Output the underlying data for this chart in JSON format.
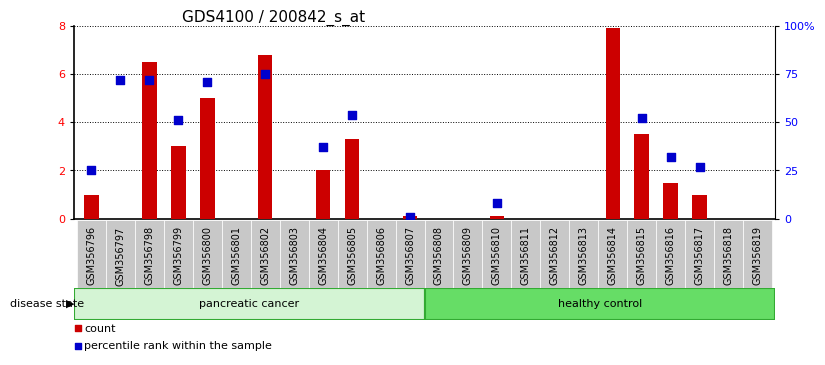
{
  "title": "GDS4100 / 200842_s_at",
  "samples": [
    "GSM356796",
    "GSM356797",
    "GSM356798",
    "GSM356799",
    "GSM356800",
    "GSM356801",
    "GSM356802",
    "GSM356803",
    "GSM356804",
    "GSM356805",
    "GSM356806",
    "GSM356807",
    "GSM356808",
    "GSM356809",
    "GSM356810",
    "GSM356811",
    "GSM356812",
    "GSM356813",
    "GSM356814",
    "GSM356815",
    "GSM356816",
    "GSM356817",
    "GSM356818",
    "GSM356819"
  ],
  "counts": [
    1,
    0,
    6.5,
    3,
    5,
    0,
    6.8,
    0,
    2,
    3.3,
    0,
    0.1,
    0,
    0,
    0.1,
    0,
    0,
    0,
    7.9,
    3.5,
    1.5,
    1,
    0,
    0
  ],
  "percentiles": [
    25,
    72,
    72,
    51,
    71,
    null,
    75,
    null,
    37,
    54,
    null,
    1,
    null,
    null,
    8,
    null,
    null,
    null,
    null,
    52,
    32,
    27,
    null,
    null
  ],
  "bar_color": "#CC0000",
  "dot_color": "#0000CC",
  "ylim_left": [
    0,
    8
  ],
  "ylim_right": [
    0,
    100
  ],
  "yticks_left": [
    0,
    2,
    4,
    6,
    8
  ],
  "ytick_labels_left": [
    "0",
    "2",
    "4",
    "6",
    "8"
  ],
  "yticks_right": [
    0,
    25,
    50,
    75,
    100
  ],
  "ytick_labels_right": [
    "0",
    "25",
    "50",
    "75",
    "100%"
  ],
  "bar_width": 0.5,
  "dot_size": 30,
  "tick_label_fontsize": 7,
  "title_fontsize": 11,
  "legend_fontsize": 8,
  "disease_state_label": "disease state",
  "tick_bg_color": "#c8c8c8",
  "pc_color": "#d4f4d4",
  "hc_color": "#66dd66",
  "group_border_color": "#33aa33",
  "n_pancreatic": 12,
  "n_healthy": 12
}
